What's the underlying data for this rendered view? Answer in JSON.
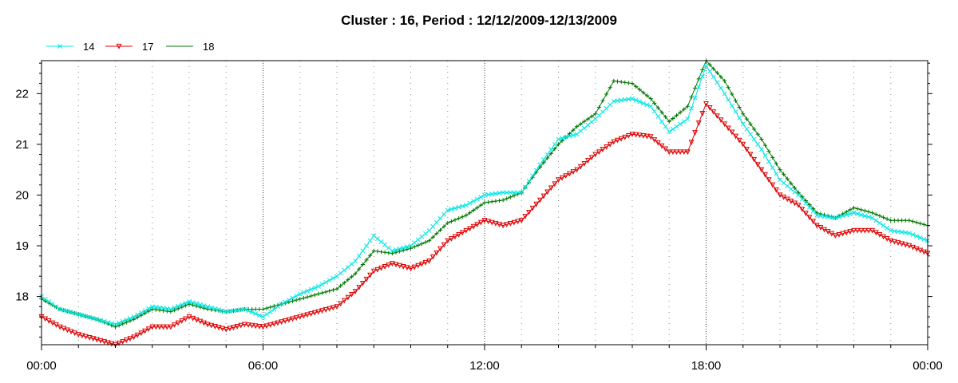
{
  "chart_data": {
    "type": "line",
    "title": "Cluster : 16, Period : 12/12/2009-12/13/2009",
    "xlabel": "",
    "ylabel": "",
    "x_unit": "hours",
    "xlim": [
      0,
      24
    ],
    "ylim": [
      17.05,
      22.65
    ],
    "x_ticks": [
      {
        "value": 0,
        "label": "00:00"
      },
      {
        "value": 6,
        "label": "06:00"
      },
      {
        "value": 12,
        "label": "12:00"
      },
      {
        "value": 18,
        "label": "18:00"
      },
      {
        "value": 24,
        "label": "00:00"
      }
    ],
    "y_ticks": [
      {
        "value": 18,
        "label": "18"
      },
      {
        "value": 19,
        "label": "19"
      },
      {
        "value": 20,
        "label": "20"
      },
      {
        "value": 21,
        "label": "21"
      },
      {
        "value": 22,
        "label": "22"
      }
    ],
    "grid": "dotted-vertical",
    "legend_position": "top-left",
    "x": [
      0,
      0.5,
      1,
      1.5,
      2,
      2.5,
      3,
      3.5,
      4,
      4.5,
      5,
      5.5,
      6,
      6.5,
      7,
      7.5,
      8,
      8.5,
      9,
      9.5,
      10,
      10.5,
      11,
      11.5,
      12,
      12.5,
      13,
      13.5,
      14,
      14.5,
      15,
      15.5,
      16,
      16.5,
      17,
      17.5,
      18,
      18.5,
      19,
      19.5,
      20,
      20.5,
      21,
      21.5,
      22,
      22.5,
      23,
      23.5,
      24
    ],
    "series": [
      {
        "name": "14",
        "color": "#00e5e5",
        "marker": "x",
        "values": [
          18.0,
          17.75,
          17.65,
          17.55,
          17.45,
          17.6,
          17.8,
          17.75,
          17.9,
          17.8,
          17.7,
          17.75,
          17.6,
          17.85,
          18.05,
          18.2,
          18.4,
          18.7,
          19.2,
          18.9,
          19.0,
          19.3,
          19.7,
          19.8,
          20.0,
          20.05,
          20.05,
          20.6,
          21.1,
          21.2,
          21.5,
          21.85,
          21.9,
          21.75,
          21.25,
          21.5,
          22.55,
          22.0,
          21.4,
          20.9,
          20.3,
          20.0,
          19.6,
          19.55,
          19.65,
          19.55,
          19.3,
          19.25,
          19.1
        ]
      },
      {
        "name": "17",
        "color": "#dd0000",
        "marker": "triangle-down",
        "values": [
          17.6,
          17.4,
          17.25,
          17.15,
          17.05,
          17.2,
          17.4,
          17.4,
          17.6,
          17.45,
          17.35,
          17.45,
          17.4,
          17.5,
          17.6,
          17.7,
          17.8,
          18.1,
          18.5,
          18.65,
          18.55,
          18.7,
          19.1,
          19.3,
          19.5,
          19.4,
          19.5,
          19.9,
          20.3,
          20.5,
          20.8,
          21.05,
          21.2,
          21.15,
          20.85,
          20.85,
          21.8,
          21.4,
          21.0,
          20.5,
          20.0,
          19.8,
          19.4,
          19.2,
          19.3,
          19.3,
          19.1,
          19.0,
          18.85
        ]
      },
      {
        "name": "18",
        "color": "#007700",
        "marker": "plus",
        "values": [
          17.95,
          17.75,
          17.65,
          17.55,
          17.4,
          17.55,
          17.75,
          17.7,
          17.85,
          17.75,
          17.7,
          17.75,
          17.75,
          17.85,
          17.95,
          18.05,
          18.15,
          18.45,
          18.9,
          18.85,
          18.95,
          19.1,
          19.45,
          19.6,
          19.85,
          19.9,
          20.05,
          20.55,
          21.0,
          21.35,
          21.6,
          22.25,
          22.2,
          21.9,
          21.45,
          21.75,
          22.65,
          22.25,
          21.6,
          21.1,
          20.5,
          20.05,
          19.65,
          19.55,
          19.75,
          19.65,
          19.5,
          19.5,
          19.4
        ]
      }
    ]
  }
}
